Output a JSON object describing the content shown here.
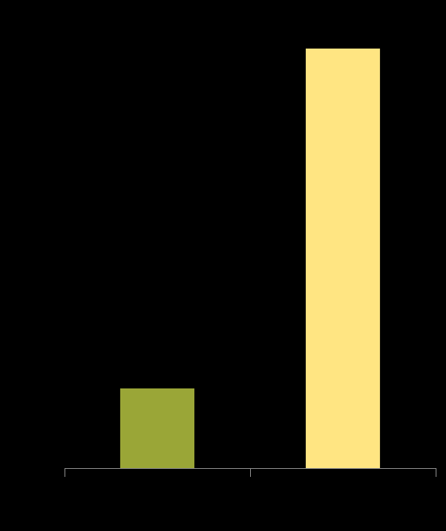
{
  "chart_data": {
    "type": "bar",
    "categories": [
      null,
      null
    ],
    "series": [
      {
        "values": [
          19,
          100
        ],
        "colors": [
          "#9aa637",
          "#ffe582"
        ]
      }
    ],
    "ylim": [
      0,
      100
    ]
  }
}
